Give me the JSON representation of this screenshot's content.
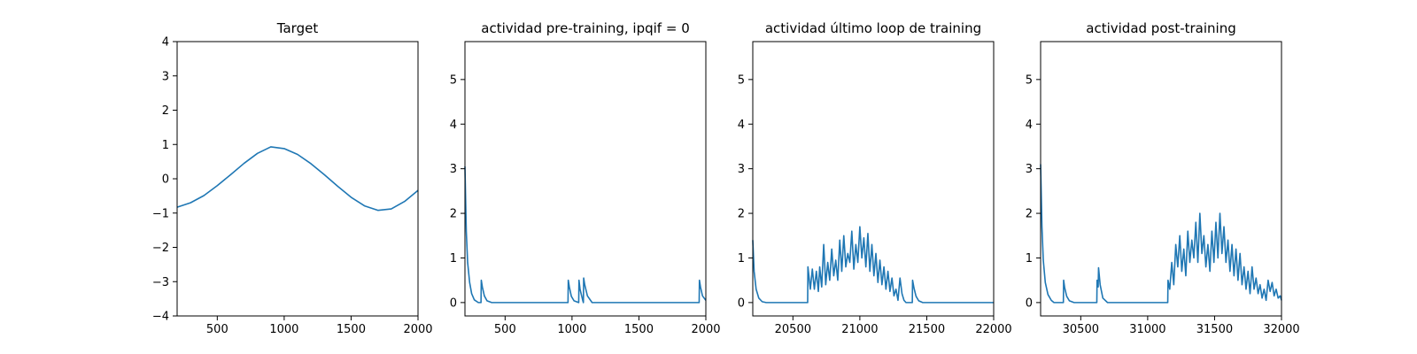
{
  "chart_data": [
    {
      "type": "line",
      "title": "Target",
      "xlabel": "",
      "ylabel": "",
      "xlim": [
        200,
        2000
      ],
      "ylim": [
        -4,
        4
      ],
      "xticks": [
        500,
        1000,
        1500,
        2000
      ],
      "yticks": [
        -4,
        -3,
        -2,
        -1,
        0,
        1,
        2,
        3,
        4
      ],
      "grid": false,
      "color": "#1f77b4",
      "series": [
        {
          "x": [
            200,
            300,
            400,
            500,
            600,
            700,
            800,
            900,
            1000,
            1100,
            1200,
            1300,
            1400,
            1500,
            1600,
            1700,
            1800,
            1900,
            2000
          ],
          "y": [
            -0.83,
            -0.7,
            -0.49,
            -0.2,
            0.12,
            0.45,
            0.74,
            0.93,
            0.88,
            0.71,
            0.44,
            0.12,
            -0.22,
            -0.54,
            -0.79,
            -0.92,
            -0.88,
            -0.66,
            -0.34
          ]
        }
      ]
    },
    {
      "type": "line",
      "title": "actividad pre-training, ipqif = 0",
      "xlabel": "",
      "ylabel": "",
      "xlim": [
        200,
        2000
      ],
      "ylim": [
        -0.3,
        5.85
      ],
      "xticks": [
        500,
        1000,
        1500,
        2000
      ],
      "yticks": [
        0,
        1,
        2,
        3,
        4,
        5
      ],
      "grid": false,
      "color": "#1f77b4",
      "series": [
        {
          "x": [
            200,
            210,
            220,
            235,
            250,
            270,
            300,
            320,
            322,
            330,
            345,
            365,
            400,
            970,
            972,
            980,
            995,
            1015,
            1050,
            1052,
            1060,
            1080,
            1085,
            1087,
            1095,
            1115,
            1150,
            1950,
            1952,
            1960,
            1975,
            2000
          ],
          "y": [
            3.05,
            1.6,
            0.9,
            0.45,
            0.2,
            0.06,
            0.0,
            0.0,
            0.5,
            0.35,
            0.15,
            0.04,
            0.0,
            0.0,
            0.5,
            0.35,
            0.14,
            0.04,
            0.0,
            0.5,
            0.3,
            0.05,
            0.0,
            0.55,
            0.4,
            0.15,
            0.0,
            0.0,
            0.5,
            0.35,
            0.15,
            0.05
          ]
        }
      ]
    },
    {
      "type": "line",
      "title": "actividad último loop de training",
      "xlabel": "",
      "ylabel": "",
      "xlim": [
        20200,
        22000
      ],
      "ylim": [
        -0.3,
        5.85
      ],
      "xticks": [
        20500,
        21000,
        21500,
        22000
      ],
      "yticks": [
        0,
        1,
        2,
        3,
        4,
        5
      ],
      "grid": false,
      "color": "#1f77b4",
      "series": [
        {
          "x": [
            20200,
            20210,
            20225,
            20245,
            20270,
            20300,
            20610,
            20612,
            20630,
            20645,
            20660,
            20675,
            20690,
            20700,
            20715,
            20730,
            20745,
            20760,
            20775,
            20790,
            20805,
            20820,
            20835,
            20850,
            20865,
            20880,
            20895,
            20910,
            20925,
            20940,
            20955,
            20970,
            20985,
            21000,
            21015,
            21030,
            21045,
            21060,
            21075,
            21090,
            21105,
            21120,
            21135,
            21150,
            21165,
            21180,
            21195,
            21210,
            21225,
            21240,
            21255,
            21270,
            21285,
            21300,
            21315,
            21330,
            21345,
            21360,
            21380,
            21392,
            21394,
            21405,
            21420,
            21440,
            21470,
            22000
          ],
          "y": [
            1.4,
            0.7,
            0.3,
            0.1,
            0.02,
            0.0,
            0.0,
            0.8,
            0.3,
            0.75,
            0.3,
            0.7,
            0.25,
            0.8,
            0.35,
            1.3,
            0.4,
            0.9,
            0.5,
            1.2,
            0.6,
            0.95,
            0.5,
            1.4,
            0.7,
            1.5,
            0.8,
            1.1,
            0.9,
            1.6,
            0.75,
            1.3,
            0.9,
            1.7,
            1.0,
            1.45,
            0.8,
            1.55,
            0.7,
            1.3,
            0.6,
            1.1,
            0.45,
            0.95,
            0.4,
            0.8,
            0.3,
            0.7,
            0.25,
            0.55,
            0.15,
            0.3,
            0.05,
            0.55,
            0.2,
            0.05,
            0.0,
            0.0,
            0.0,
            0.0,
            0.5,
            0.32,
            0.14,
            0.04,
            0.0,
            0.0
          ]
        }
      ]
    },
    {
      "type": "line",
      "title": "actividad post-training",
      "xlabel": "",
      "ylabel": "",
      "xlim": [
        30200,
        32000
      ],
      "ylim": [
        -0.3,
        5.85
      ],
      "xticks": [
        30500,
        31000,
        31500,
        32000
      ],
      "yticks": [
        0,
        1,
        2,
        3,
        4,
        5
      ],
      "grid": false,
      "color": "#1f77b4",
      "series": [
        {
          "x": [
            30200,
            30210,
            30220,
            30235,
            30255,
            30280,
            30300,
            30370,
            30372,
            30380,
            30395,
            30415,
            30450,
            30620,
            30622,
            30630,
            30633,
            30645,
            30665,
            30700,
            31150,
            31152,
            31165,
            31180,
            31195,
            31210,
            31225,
            31240,
            31255,
            31270,
            31285,
            31300,
            31315,
            31330,
            31345,
            31360,
            31375,
            31390,
            31405,
            31420,
            31435,
            31450,
            31465,
            31480,
            31495,
            31510,
            31525,
            31540,
            31555,
            31570,
            31585,
            31600,
            31615,
            31630,
            31645,
            31660,
            31675,
            31690,
            31705,
            31720,
            31735,
            31750,
            31765,
            31780,
            31795,
            31810,
            31825,
            31840,
            31855,
            31870,
            31885,
            31900,
            31915,
            31930,
            31945,
            31960,
            31975,
            31990,
            32000
          ],
          "y": [
            3.1,
            1.7,
            0.95,
            0.45,
            0.18,
            0.05,
            0.0,
            0.0,
            0.5,
            0.33,
            0.14,
            0.04,
            0.0,
            0.0,
            0.5,
            0.35,
            0.78,
            0.4,
            0.1,
            0.0,
            0.0,
            0.5,
            0.3,
            0.9,
            0.4,
            1.3,
            0.8,
            1.5,
            0.7,
            1.2,
            0.6,
            1.6,
            0.9,
            1.4,
            1.0,
            1.8,
            0.9,
            2.0,
            1.1,
            1.5,
            0.8,
            1.3,
            0.7,
            1.6,
            0.9,
            1.8,
            1.0,
            2.0,
            1.1,
            1.7,
            0.9,
            1.4,
            0.7,
            1.3,
            0.6,
            1.2,
            0.5,
            1.1,
            0.4,
            0.8,
            0.3,
            0.7,
            0.2,
            0.8,
            0.3,
            0.55,
            0.2,
            0.4,
            0.1,
            0.3,
            0.05,
            0.5,
            0.25,
            0.45,
            0.15,
            0.3,
            0.1,
            0.15,
            0.05
          ]
        }
      ]
    }
  ]
}
